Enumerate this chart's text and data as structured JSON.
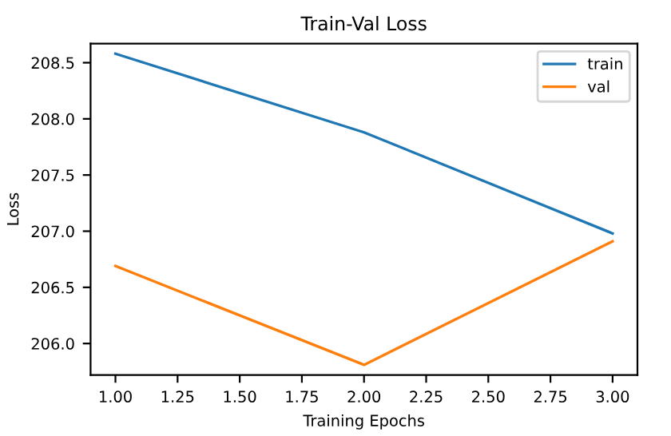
{
  "chart_data": {
    "type": "line",
    "title": "Train-Val Loss",
    "xlabel": "Training Epochs",
    "ylabel": "Loss",
    "x": [
      1,
      2,
      3
    ],
    "series": [
      {
        "name": "train",
        "color": "#1f77b4",
        "values": [
          208.58,
          207.88,
          206.98
        ]
      },
      {
        "name": "val",
        "color": "#ff7f0e",
        "values": [
          206.69,
          205.81,
          206.91
        ]
      }
    ],
    "xlim": [
      0.9,
      3.1
    ],
    "xticks": [
      {
        "value": 1,
        "label": "1.00"
      },
      {
        "value": 1.25,
        "label": "1.25"
      },
      {
        "value": 1.5,
        "label": "1.50"
      },
      {
        "value": 1.75,
        "label": "1.75"
      },
      {
        "value": 2,
        "label": "2.00"
      },
      {
        "value": 2.25,
        "label": "2.25"
      },
      {
        "value": 2.5,
        "label": "2.50"
      },
      {
        "value": 2.75,
        "label": "2.75"
      },
      {
        "value": 3,
        "label": "3.00"
      }
    ],
    "ylim": [
      205.72,
      208.67
    ],
    "yticks": [
      {
        "value": 206,
        "label": "206.0"
      },
      {
        "value": 206.5,
        "label": "206.5"
      },
      {
        "value": 207,
        "label": "207.0"
      },
      {
        "value": 207.5,
        "label": "207.5"
      },
      {
        "value": 208,
        "label": "208.0"
      },
      {
        "value": 208.5,
        "label": "208.5"
      }
    ],
    "legend": "top right",
    "grid": false
  }
}
